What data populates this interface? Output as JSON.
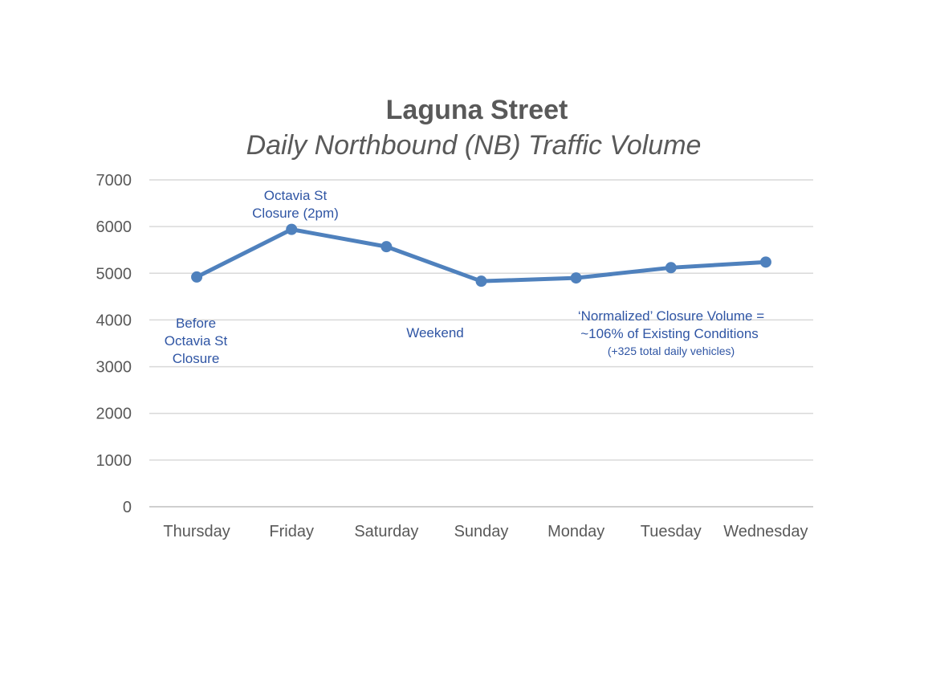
{
  "chart_data": {
    "type": "line",
    "title": "Laguna Street",
    "subtitle": "Daily Northbound (NB) Traffic Volume",
    "categories": [
      "Thursday",
      "Friday",
      "Saturday",
      "Sunday",
      "Monday",
      "Tuesday",
      "Wednesday"
    ],
    "series": [
      {
        "values": [
          4920,
          5940,
          5570,
          4830,
          4900,
          5120,
          5240
        ],
        "color": "#4f81bd"
      }
    ],
    "ylim": [
      0,
      7000
    ],
    "yticks": [
      "0",
      "1000",
      "2000",
      "3000",
      "4000",
      "5000",
      "6000",
      "7000"
    ],
    "grid": true,
    "legend": "none",
    "annotations": {
      "before": [
        "Before",
        "Octavia St",
        "Closure"
      ],
      "closure": [
        "Octavia St",
        "Closure (2pm)"
      ],
      "weekend": "Weekend",
      "normalized": [
        "‘Normalized’ Closure Volume =",
        "~106% of Existing Conditions"
      ],
      "normalized_note": "(+325 total daily vehicles)"
    }
  }
}
